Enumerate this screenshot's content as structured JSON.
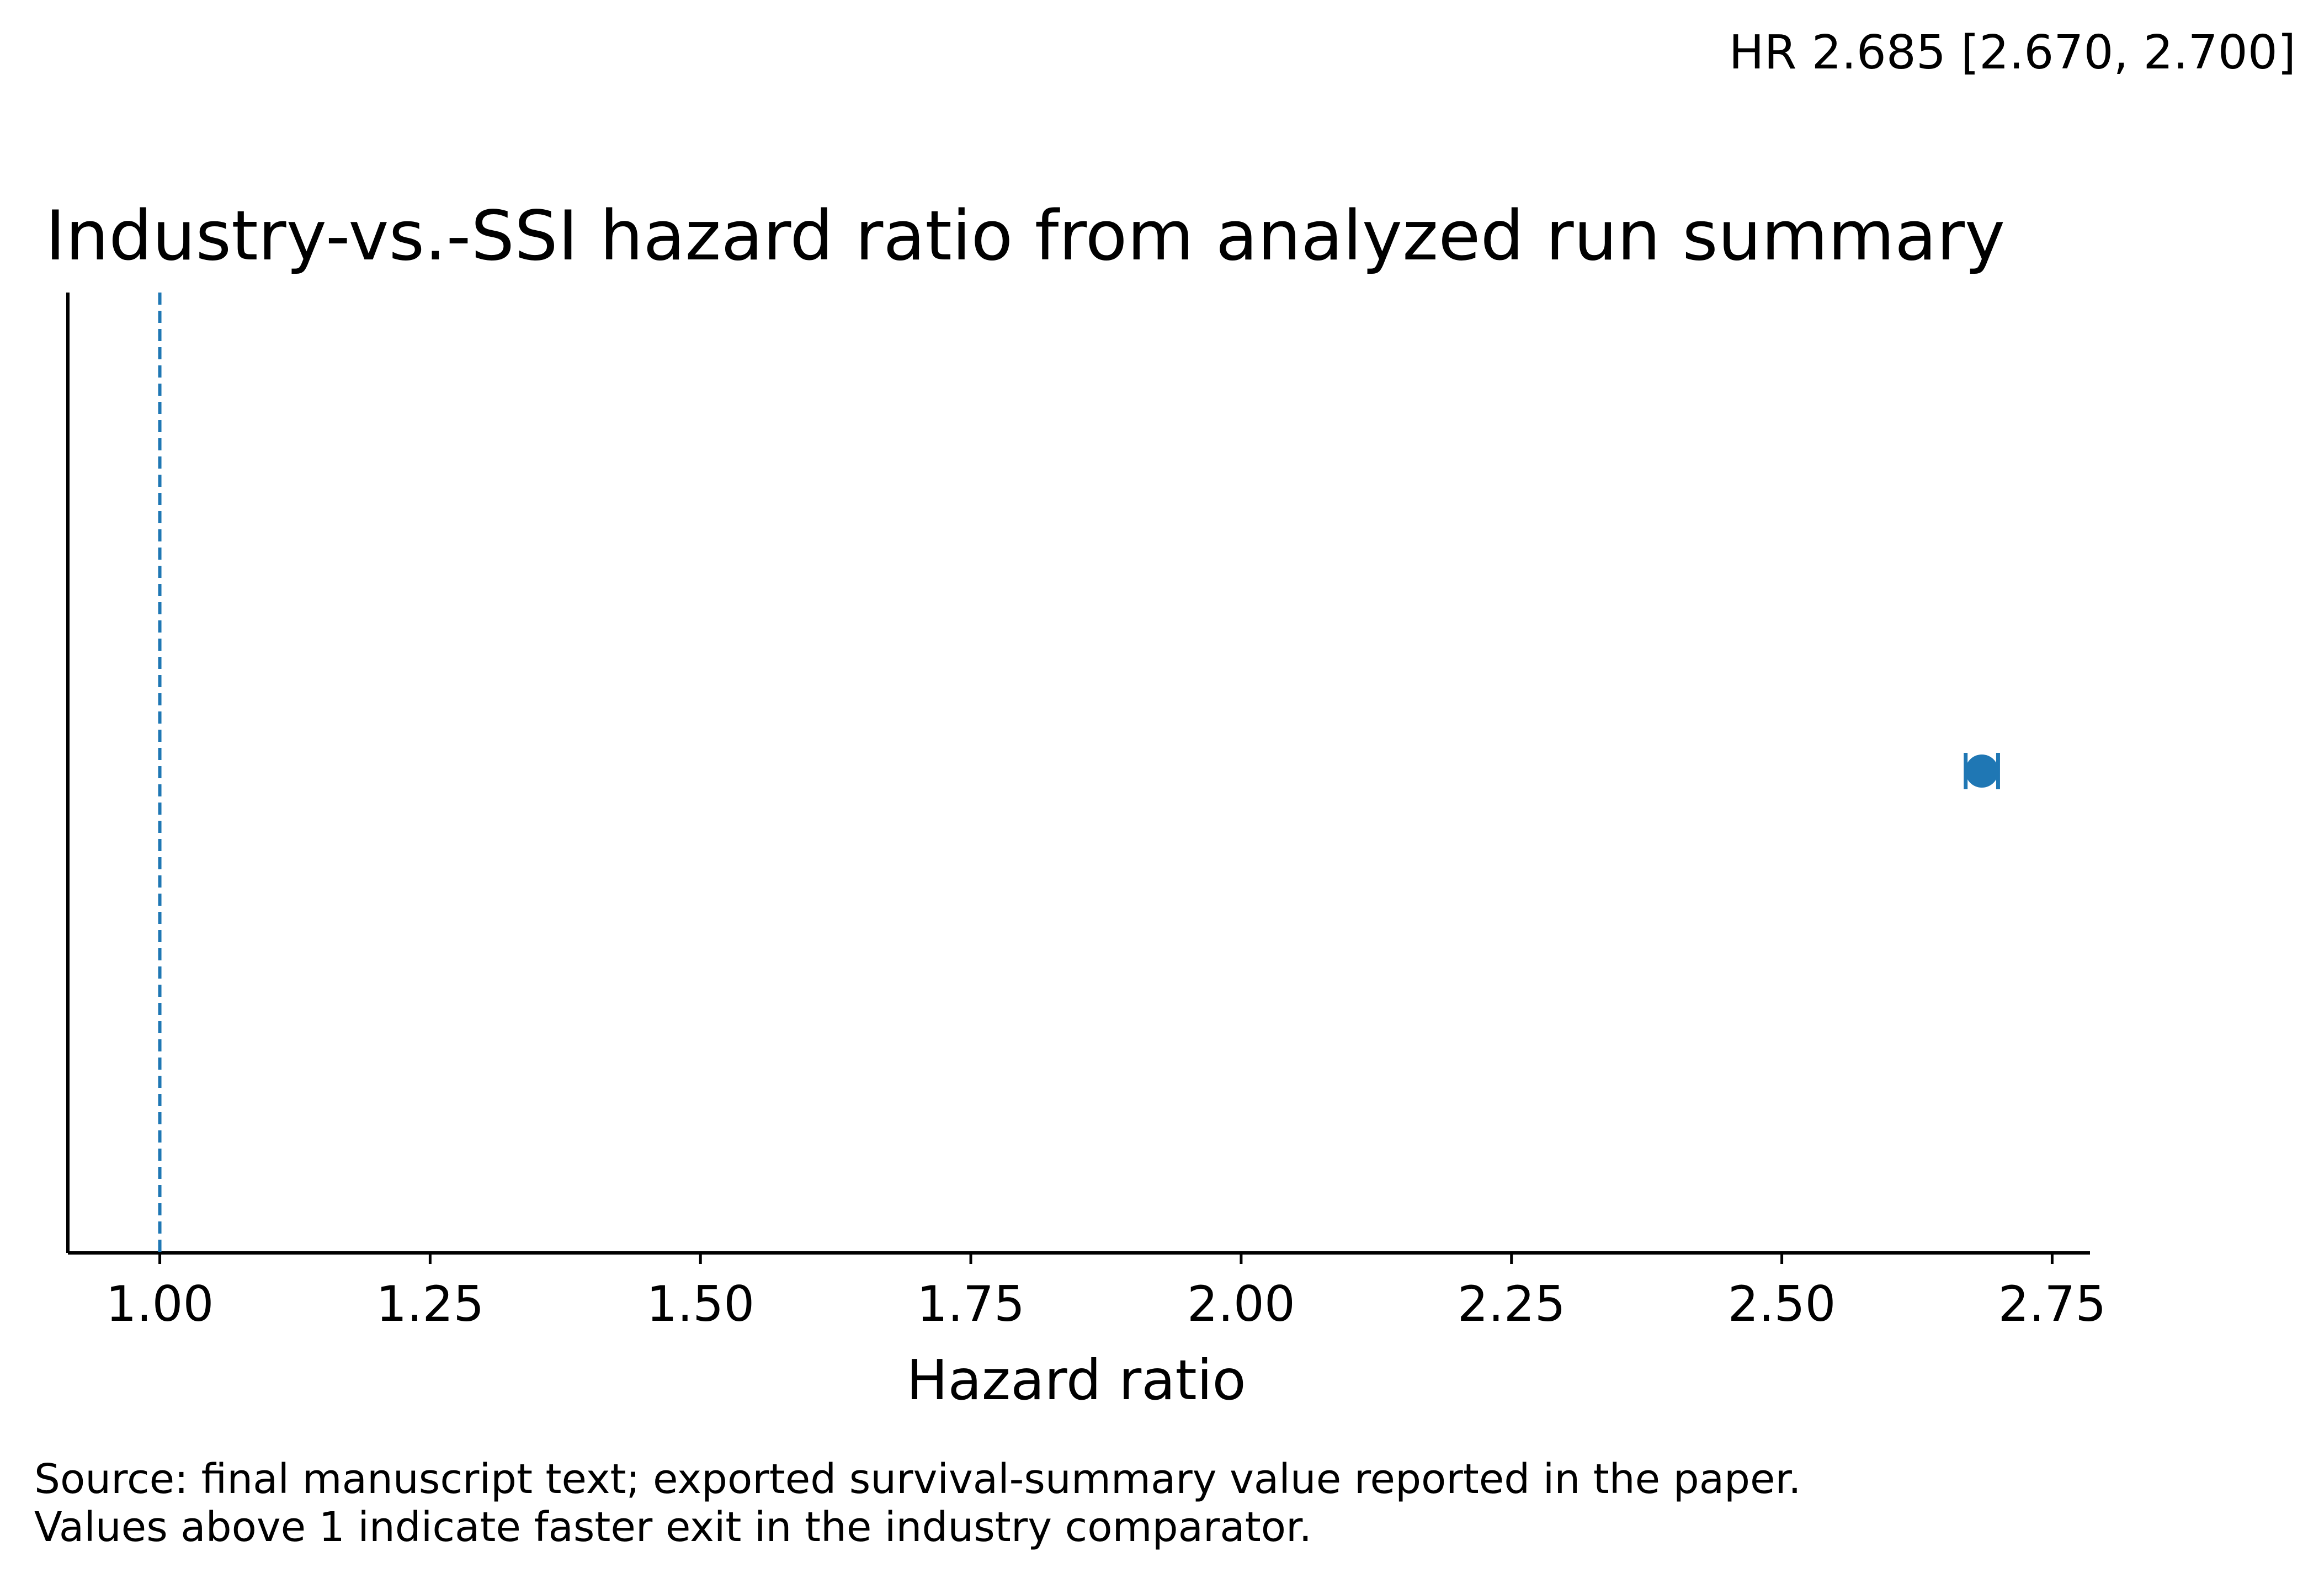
{
  "chart_data": {
    "type": "scatter",
    "title": "Industry-vs.-SSI hazard ratio from analyzed run summary",
    "xlabel": "Hazard ratio",
    "ylabel": "",
    "xlim": [
      0.915,
      2.785
    ],
    "xticks": [
      1.0,
      1.25,
      1.5,
      1.75,
      2.0,
      2.25,
      2.5,
      2.75
    ],
    "xtick_labels": [
      "1.00",
      "1.25",
      "1.50",
      "1.75",
      "2.00",
      "2.25",
      "2.50",
      "2.75"
    ],
    "grid": false,
    "reference_line": {
      "x": 1.0,
      "style": "dashed"
    },
    "points": [
      {
        "hr": 2.685,
        "ci_low": 2.67,
        "ci_high": 2.7
      }
    ],
    "annotation": "HR 2.685 [2.670, 2.700]",
    "notes": [
      "Source: final manuscript text; exported survival-summary value reported in the paper.",
      "Values above 1 indicate faster exit in the industry comparator."
    ],
    "colors": {
      "point": "#1f77b4",
      "reference_line": "#1f77b4",
      "axis": "#000000"
    }
  }
}
